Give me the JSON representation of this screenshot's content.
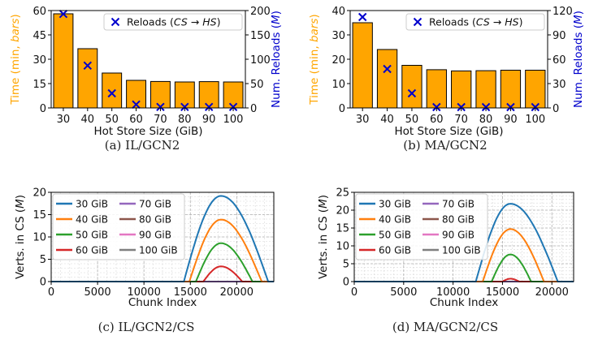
{
  "colors": {
    "bar": "#FFA500",
    "reload": "#0000CC",
    "left_axis": "#FFA500",
    "right_axis": "#0000CC",
    "series": [
      "#1f77b4",
      "#ff7f0e",
      "#2ca02c",
      "#d62728",
      "#9467bd",
      "#8c564b",
      "#e377c2",
      "#7f7f7f"
    ]
  },
  "chart_data": [
    {
      "type": "bar",
      "caption": "(a) IL/GCN2",
      "xlabel": "Hot Store Size (GiB)",
      "ylabel": "Time (min, bars)",
      "ylabel_parts": [
        "Time (min, ",
        "bars",
        ")"
      ],
      "y2label": "Num. Reloads (M)",
      "y2label_parts": [
        "Num. Reloads (",
        "M",
        ")"
      ],
      "legend": "Reloads (CS → HS)",
      "legend_parts": [
        "Reloads (",
        "CS → HS",
        ")"
      ],
      "categories": [
        "30",
        "40",
        "50",
        "60",
        "70",
        "80",
        "90",
        "100"
      ],
      "ylim": [
        0,
        60
      ],
      "yticks": [
        0,
        15,
        30,
        45,
        60
      ],
      "y2lim": [
        0,
        200
      ],
      "y2ticks": [
        0,
        50,
        100,
        150,
        200
      ],
      "series": [
        {
          "axis": "left",
          "kind": "bar",
          "values": [
            58,
            36.5,
            21.5,
            17,
            16.3,
            16,
            16.2,
            16
          ]
        },
        {
          "axis": "right",
          "kind": "marker",
          "values": [
            193,
            87,
            30,
            7,
            2,
            2,
            2,
            2
          ]
        }
      ]
    },
    {
      "type": "bar",
      "caption": "(b) MA/GCN2",
      "xlabel": "Hot Store Size (GiB)",
      "ylabel": "Time (min, bars)",
      "ylabel_parts": [
        "Time (min, ",
        "bars",
        ")"
      ],
      "y2label": "Num. Reloads (M)",
      "y2label_parts": [
        "Num. Reloads (",
        "M",
        ")"
      ],
      "legend": "Reloads (CS → HS)",
      "legend_parts": [
        "Reloads (",
        "CS → HS",
        ")"
      ],
      "categories": [
        "30",
        "40",
        "50",
        "60",
        "70",
        "80",
        "90",
        "100"
      ],
      "ylim": [
        0,
        40
      ],
      "yticks": [
        0,
        10,
        20,
        30,
        40
      ],
      "y2lim": [
        0,
        120
      ],
      "y2ticks": [
        0,
        30,
        60,
        90,
        120
      ],
      "series": [
        {
          "axis": "left",
          "kind": "bar",
          "values": [
            35,
            24,
            17.5,
            15.7,
            15.2,
            15.3,
            15.5,
            15.5
          ]
        },
        {
          "axis": "right",
          "kind": "marker",
          "values": [
            112,
            48,
            18,
            1,
            1,
            1,
            1,
            1
          ]
        }
      ]
    },
    {
      "type": "line",
      "caption": "(c) IL/GCN2/CS",
      "xlabel": "Chunk Index",
      "ylabel": "Verts. in CS (M)",
      "ylabel_parts": [
        "Verts. in CS (",
        "M",
        ")"
      ],
      "xlim": [
        0,
        24000
      ],
      "xticks": [
        0,
        5000,
        10000,
        15000,
        20000
      ],
      "ylim": [
        0,
        20
      ],
      "yticks": [
        0,
        5,
        10,
        15,
        20
      ],
      "grid": true,
      "legend_position": "top-left",
      "series": [
        {
          "name": "30 GiB",
          "start": 14300,
          "peak_x": 18300,
          "end": 23400,
          "peak": 19.2
        },
        {
          "name": "40 GiB",
          "start": 14900,
          "peak_x": 18300,
          "end": 22700,
          "peak": 13.9
        },
        {
          "name": "50 GiB",
          "start": 15600,
          "peak_x": 18300,
          "end": 21700,
          "peak": 8.6
        },
        {
          "name": "60 GiB",
          "start": 16400,
          "peak_x": 18300,
          "end": 20600,
          "peak": 3.4
        },
        {
          "name": "70 GiB",
          "start": 0,
          "peak_x": 0,
          "end": 0,
          "peak": 0
        },
        {
          "name": "80 GiB",
          "start": 0,
          "peak_x": 0,
          "end": 0,
          "peak": 0
        },
        {
          "name": "90 GiB",
          "start": 0,
          "peak_x": 0,
          "end": 0,
          "peak": 0
        },
        {
          "name": "100 GiB",
          "start": 0,
          "peak_x": 0,
          "end": 0,
          "peak": 0
        }
      ]
    },
    {
      "type": "line",
      "caption": "(d) MA/GCN2/CS",
      "xlabel": "Chunk Index",
      "ylabel": "Verts. in CS (M)",
      "ylabel_parts": [
        "Verts. in CS (",
        "M",
        ")"
      ],
      "xlim": [
        0,
        22200
      ],
      "xticks": [
        0,
        5000,
        10000,
        15000,
        20000
      ],
      "ylim": [
        0,
        25
      ],
      "yticks": [
        0,
        5,
        10,
        15,
        20,
        25
      ],
      "grid": true,
      "legend_position": "top-left",
      "series": [
        {
          "name": "30 GiB",
          "start": 12300,
          "peak_x": 15800,
          "end": 20600,
          "peak": 21.8
        },
        {
          "name": "40 GiB",
          "start": 13000,
          "peak_x": 15800,
          "end": 19200,
          "peak": 14.7
        },
        {
          "name": "50 GiB",
          "start": 13900,
          "peak_x": 15800,
          "end": 17900,
          "peak": 7.6
        },
        {
          "name": "60 GiB",
          "start": 15000,
          "peak_x": 15800,
          "end": 16700,
          "peak": 0.8
        },
        {
          "name": "70 GiB",
          "start": 0,
          "peak_x": 0,
          "end": 0,
          "peak": 0
        },
        {
          "name": "80 GiB",
          "start": 0,
          "peak_x": 0,
          "end": 0,
          "peak": 0
        },
        {
          "name": "90 GiB",
          "start": 0,
          "peak_x": 0,
          "end": 0,
          "peak": 0
        },
        {
          "name": "100 GiB",
          "start": 0,
          "peak_x": 0,
          "end": 0,
          "peak": 0
        }
      ]
    }
  ]
}
